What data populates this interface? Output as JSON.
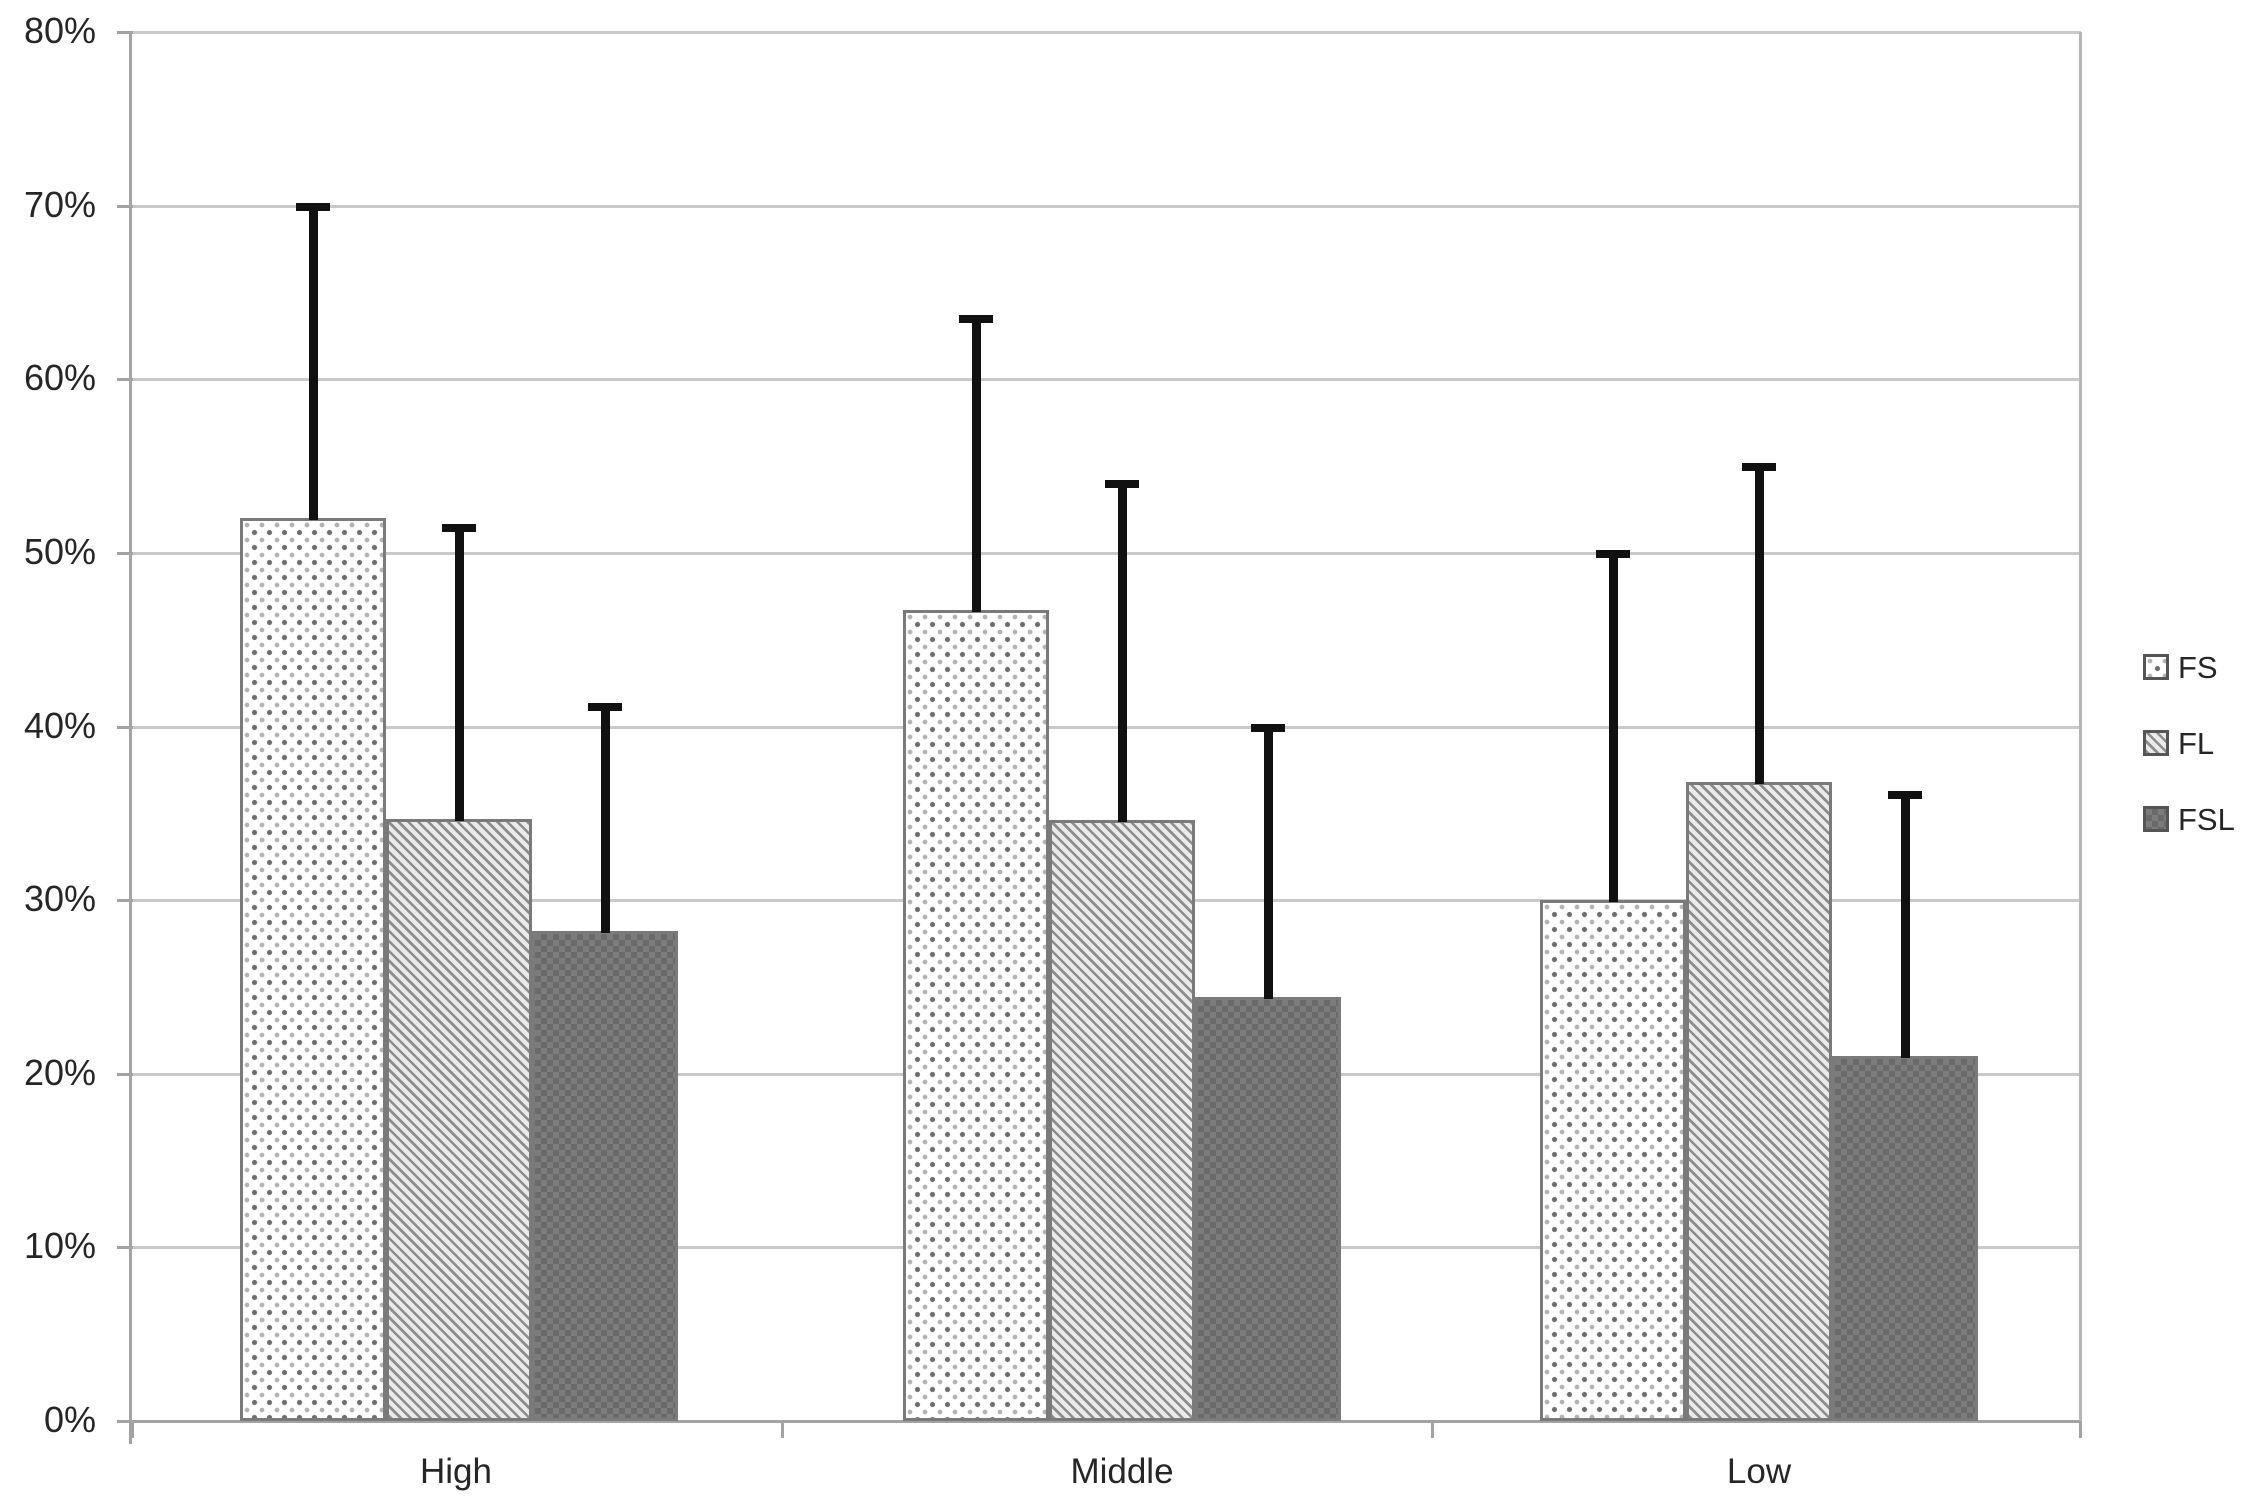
{
  "chart_data": {
    "type": "bar",
    "title": "",
    "xlabel": "",
    "ylabel": "",
    "categories": [
      "High",
      "Middle",
      "Low"
    ],
    "series": [
      {
        "name": "FS",
        "pattern": "dots",
        "values": [
          52.0,
          46.7,
          30.0
        ],
        "error_top": [
          70.0,
          63.5,
          50.0
        ]
      },
      {
        "name": "FL",
        "pattern": "diagonal-hatch",
        "values": [
          34.7,
          34.6,
          36.8
        ],
        "error_top": [
          51.5,
          54.0,
          55.0
        ]
      },
      {
        "name": "FSL",
        "pattern": "dark-checker",
        "values": [
          28.2,
          24.4,
          21.0
        ],
        "error_top": [
          41.2,
          40.0,
          36.1
        ]
      }
    ],
    "error_bars": "upper only",
    "ylim": [
      0,
      80
    ],
    "ytick_step": 10,
    "ytick_labels": [
      "0%",
      "10%",
      "20%",
      "30%",
      "40%",
      "50%",
      "60%",
      "70%",
      "80%"
    ],
    "grid": true,
    "legend_position": "right"
  },
  "legend": {
    "items": [
      "FS",
      "FL",
      "FSL"
    ]
  },
  "colors": {
    "background": "#ffffff",
    "gridline": "#c9c9c9",
    "axis_line": "#a3a3a3",
    "bar_border": "#7a7a7a",
    "error_bar": "#111111",
    "text": "#262626",
    "fsl_fill": "#7c7c7c",
    "fl_stripe": "#8d8d8d",
    "fs_dot": "#6e6e6e"
  }
}
